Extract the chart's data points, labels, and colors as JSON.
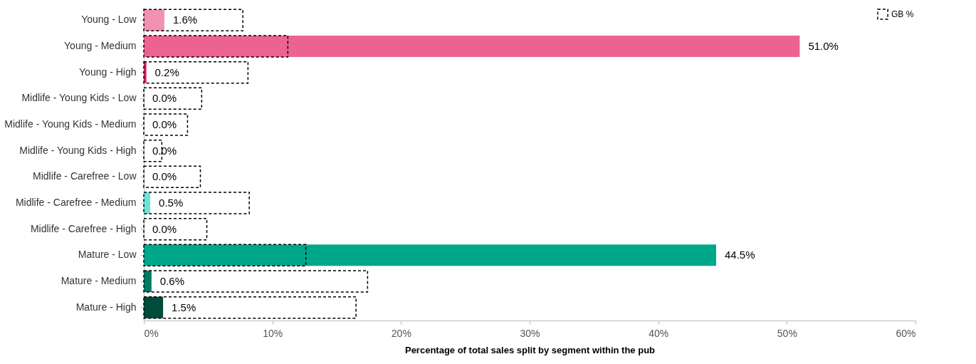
{
  "chart_data": {
    "type": "bar",
    "orientation": "horizontal",
    "xlabel": "Percentage of total sales split by segment within the pub",
    "categories": [
      "Young - Low",
      "Young - Medium",
      "Young - High",
      "Midlife - Young Kids - Low",
      "Midlife - Young Kids - Medium",
      "Midlife - Young Kids - High",
      "Midlife - Carefree - Low",
      "Midlife - Carefree - Medium",
      "Midlife - Carefree - High",
      "Mature - Low",
      "Mature - Medium",
      "Mature - High"
    ],
    "series": [
      {
        "values": [
          1.6,
          51.0,
          0.2,
          0.0,
          0.0,
          0.0,
          0.0,
          0.5,
          0.0,
          44.5,
          0.6,
          1.5
        ],
        "colors": [
          "#f191b3",
          "#ec6392",
          "#e0195e",
          "#f5c400",
          "#f59b00",
          "#e06a00",
          "#b8f0ec",
          "#6ee3dc",
          "#2cc6bd",
          "#00a88a",
          "#007a63",
          "#004b3c"
        ],
        "value_labels": [
          "1.6%",
          "51.0%",
          "0.2%",
          "0.0%",
          "0.0%",
          "0.0%",
          "0.0%",
          "0.5%",
          "0.0%",
          "44.5%",
          "0.6%",
          "1.5%"
        ]
      },
      {
        "name": "GB %",
        "color": "#000000",
        "line_style": "dashed",
        "values": [
          7.7,
          11.2,
          8.1,
          4.5,
          3.4,
          1.4,
          4.4,
          8.2,
          4.9,
          12.6,
          17.4,
          16.5
        ]
      }
    ],
    "xlim": [
      0,
      60
    ],
    "xticks": [
      {
        "value": 0,
        "label": "0%"
      },
      {
        "value": 10,
        "label": "10%"
      },
      {
        "value": 20,
        "label": "20%"
      },
      {
        "value": 30,
        "label": "30%"
      },
      {
        "value": 40,
        "label": "40%"
      },
      {
        "value": 50,
        "label": "50%"
      },
      {
        "value": 60,
        "label": "60%"
      }
    ],
    "legend": "top right",
    "grid": false
  }
}
